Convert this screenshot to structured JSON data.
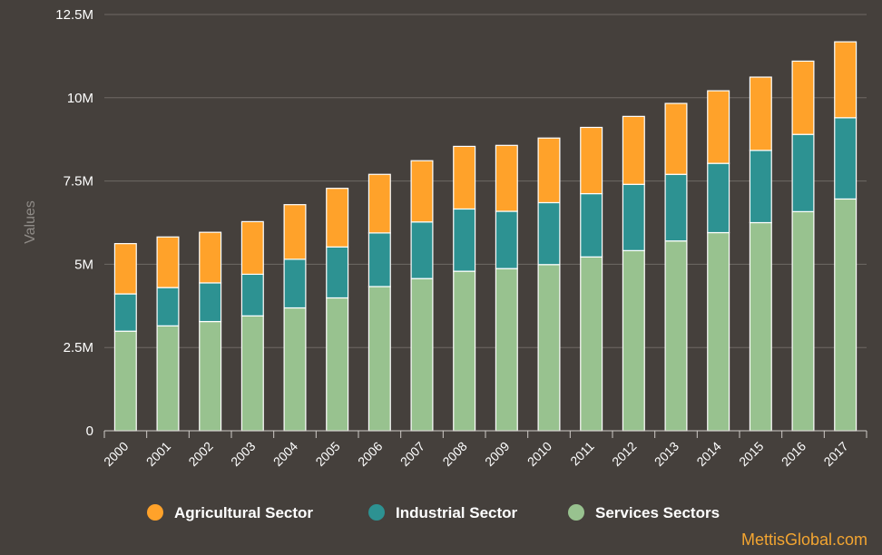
{
  "chart_data": {
    "type": "bar",
    "stacked": true,
    "title": "",
    "xlabel": "",
    "ylabel": "Values",
    "ylim": [
      0,
      12500000
    ],
    "y_ticks": [
      0,
      2500000,
      5000000,
      7500000,
      10000000,
      12500000
    ],
    "y_tick_labels": [
      "0",
      "2.5M",
      "5M",
      "7.5M",
      "10M",
      "12.5M"
    ],
    "categories": [
      "2000",
      "2001",
      "2002",
      "2003",
      "2004",
      "2005",
      "2006",
      "2007",
      "2008",
      "2009",
      "2010",
      "2011",
      "2012",
      "2013",
      "2014",
      "2015",
      "2016",
      "2017"
    ],
    "series": [
      {
        "name": "Services Sectors",
        "color": "#98c28f",
        "values": [
          2990000,
          3150000,
          3280000,
          3450000,
          3690000,
          3990000,
          4330000,
          4570000,
          4790000,
          4870000,
          4990000,
          5220000,
          5410000,
          5700000,
          5950000,
          6250000,
          6580000,
          6960000
        ]
      },
      {
        "name": "Industrial Sector",
        "color": "#2d9292",
        "values": [
          1120000,
          1150000,
          1160000,
          1250000,
          1460000,
          1530000,
          1610000,
          1700000,
          1870000,
          1720000,
          1860000,
          1900000,
          1990000,
          2000000,
          2080000,
          2170000,
          2320000,
          2440000
        ]
      },
      {
        "name": "Agricultural Sector",
        "color": "#ffa22a",
        "values": [
          1510000,
          1520000,
          1520000,
          1580000,
          1640000,
          1760000,
          1760000,
          1840000,
          1880000,
          1980000,
          1940000,
          1990000,
          2040000,
          2130000,
          2180000,
          2200000,
          2200000,
          2280000
        ]
      }
    ],
    "legend_order": [
      "Agricultural Sector",
      "Industrial Sector",
      "Services Sectors"
    ],
    "legend_position": "bottom",
    "grid": true
  },
  "watermark": {
    "text": "MettisGlobal.com",
    "color": "#f3a531"
  },
  "colors": {
    "background": "#45403c",
    "grid": "#6e6964",
    "axis": "#d0ccc8",
    "bar_stroke": "#ffffff"
  }
}
